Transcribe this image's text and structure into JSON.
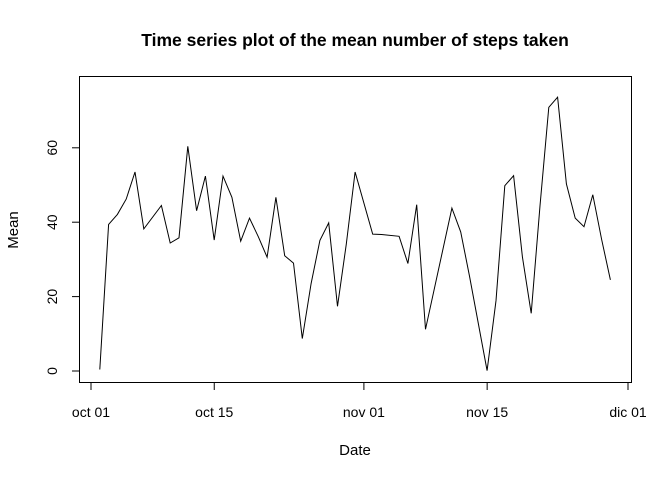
{
  "chart_data": {
    "type": "line",
    "title": "Time series plot of the mean number of steps taken",
    "xlabel": "Date",
    "ylabel": "Mean",
    "x_tick_labels": [
      "oct 01",
      "oct 15",
      "nov 01",
      "nov 15",
      "dic 01"
    ],
    "x_tick_dates": [
      "2012-10-01",
      "2012-10-15",
      "2012-11-01",
      "2012-11-15",
      "2012-12-01"
    ],
    "y_ticks": [
      0,
      20,
      40,
      60
    ],
    "xlim": [
      "2012-10-01",
      "2012-12-01"
    ],
    "ylim": [
      0,
      75
    ],
    "grid": false,
    "legend": "none",
    "series": [
      {
        "x": [
          "2012-10-02",
          "2012-10-03",
          "2012-10-04",
          "2012-10-05",
          "2012-10-06",
          "2012-10-07",
          "2012-10-09",
          "2012-10-10",
          "2012-10-11",
          "2012-10-12",
          "2012-10-13",
          "2012-10-14",
          "2012-10-15",
          "2012-10-16",
          "2012-10-17",
          "2012-10-18",
          "2012-10-19",
          "2012-10-20",
          "2012-10-21",
          "2012-10-22",
          "2012-10-23",
          "2012-10-24",
          "2012-10-25",
          "2012-10-26",
          "2012-10-27",
          "2012-10-28",
          "2012-10-29",
          "2012-10-30",
          "2012-10-31",
          "2012-11-02",
          "2012-11-03",
          "2012-11-05",
          "2012-11-06",
          "2012-11-07",
          "2012-11-08",
          "2012-11-11",
          "2012-11-12",
          "2012-11-13",
          "2012-11-15",
          "2012-11-16",
          "2012-11-17",
          "2012-11-18",
          "2012-11-19",
          "2012-11-20",
          "2012-11-21",
          "2012-11-22",
          "2012-11-23",
          "2012-11-24",
          "2012-11-25",
          "2012-11-26",
          "2012-11-27",
          "2012-11-28",
          "2012-11-29"
        ],
        "values": [
          0.4,
          39.4,
          42.1,
          46.2,
          53.5,
          38.2,
          44.5,
          34.4,
          35.8,
          60.4,
          43.1,
          52.4,
          35.2,
          52.4,
          46.7,
          34.9,
          41.1,
          36.1,
          30.6,
          46.7,
          31.0,
          29.0,
          8.7,
          23.5,
          35.1,
          39.8,
          17.4,
          34.1,
          53.5,
          36.8,
          36.7,
          36.2,
          28.9,
          44.7,
          11.2,
          43.8,
          37.4,
          25.5,
          0.1,
          18.9,
          49.8,
          52.5,
          30.7,
          15.5,
          44.4,
          70.9,
          73.6,
          50.3,
          41.1,
          38.8,
          47.4,
          35.4,
          24.5
        ]
      }
    ]
  }
}
